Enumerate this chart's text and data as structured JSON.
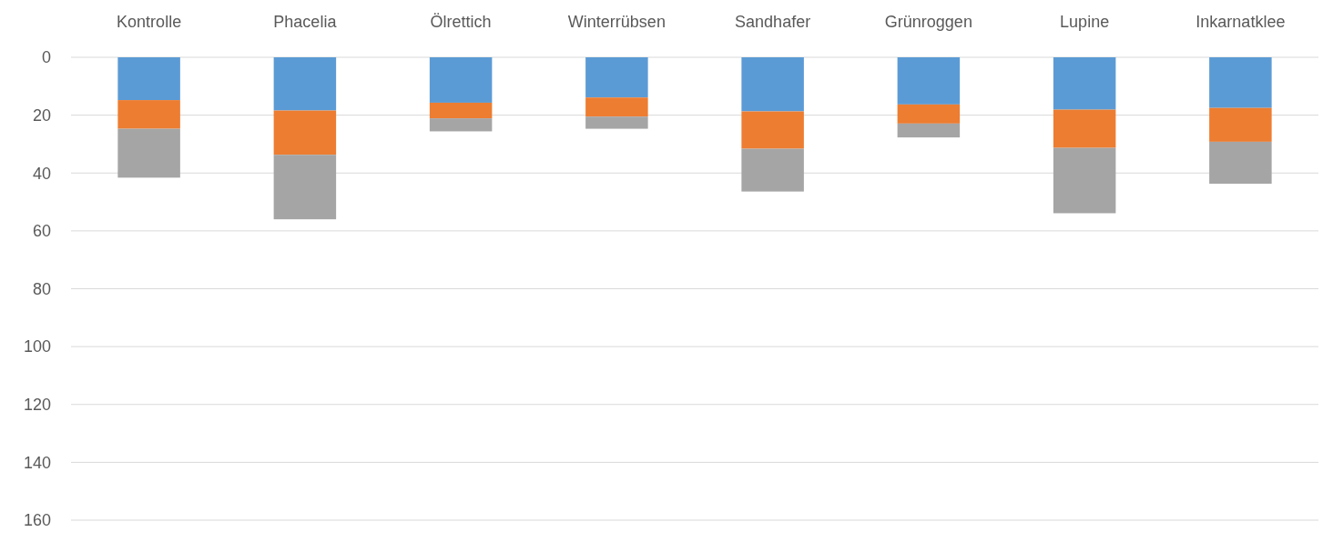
{
  "chart_data": {
    "type": "bar",
    "stacked": true,
    "categories": [
      "Kontrolle",
      "Phacelia",
      "Ölrettich",
      "Winterrübsen",
      "Sandhafer",
      "Grünroggen",
      "Lupine",
      "Inkarnatklee"
    ],
    "series": [
      {
        "color": "#5b9bd5",
        "values": [
          14.8,
          18.4,
          15.7,
          13.9,
          18.7,
          16.3,
          18.1,
          17.5
        ]
      },
      {
        "color": "#ed7d31",
        "values": [
          9.9,
          15.3,
          5.4,
          6.6,
          12.9,
          6.6,
          13.2,
          11.7
        ]
      },
      {
        "color": "#a5a5a5",
        "values": [
          16.9,
          22.3,
          4.5,
          4.2,
          14.8,
          4.8,
          22.6,
          14.5
        ]
      }
    ],
    "ylim": [
      160,
      0
    ],
    "yticks": [
      0,
      20,
      40,
      60,
      80,
      100,
      120,
      140,
      160
    ],
    "grid": "y"
  }
}
